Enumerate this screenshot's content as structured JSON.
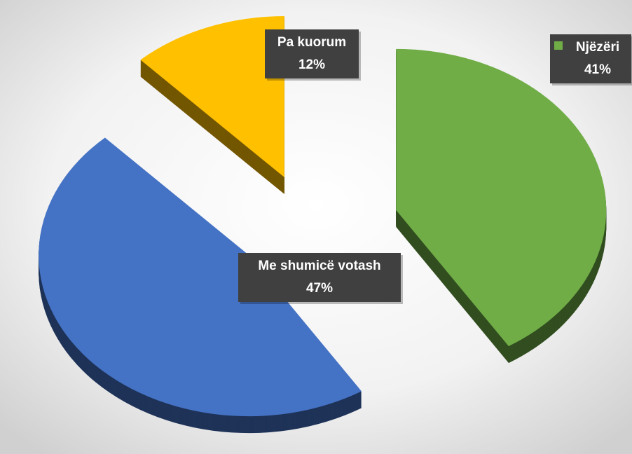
{
  "chart_data": {
    "type": "pie",
    "categories": [
      "Njëzëri",
      "Me shumicë votash",
      "Pa kuorum"
    ],
    "values": [
      41,
      47,
      12
    ],
    "value_labels": [
      "41%",
      "47%",
      "12%"
    ],
    "colors": [
      "#70ad47",
      "#4472c4",
      "#ffc000"
    ]
  }
}
